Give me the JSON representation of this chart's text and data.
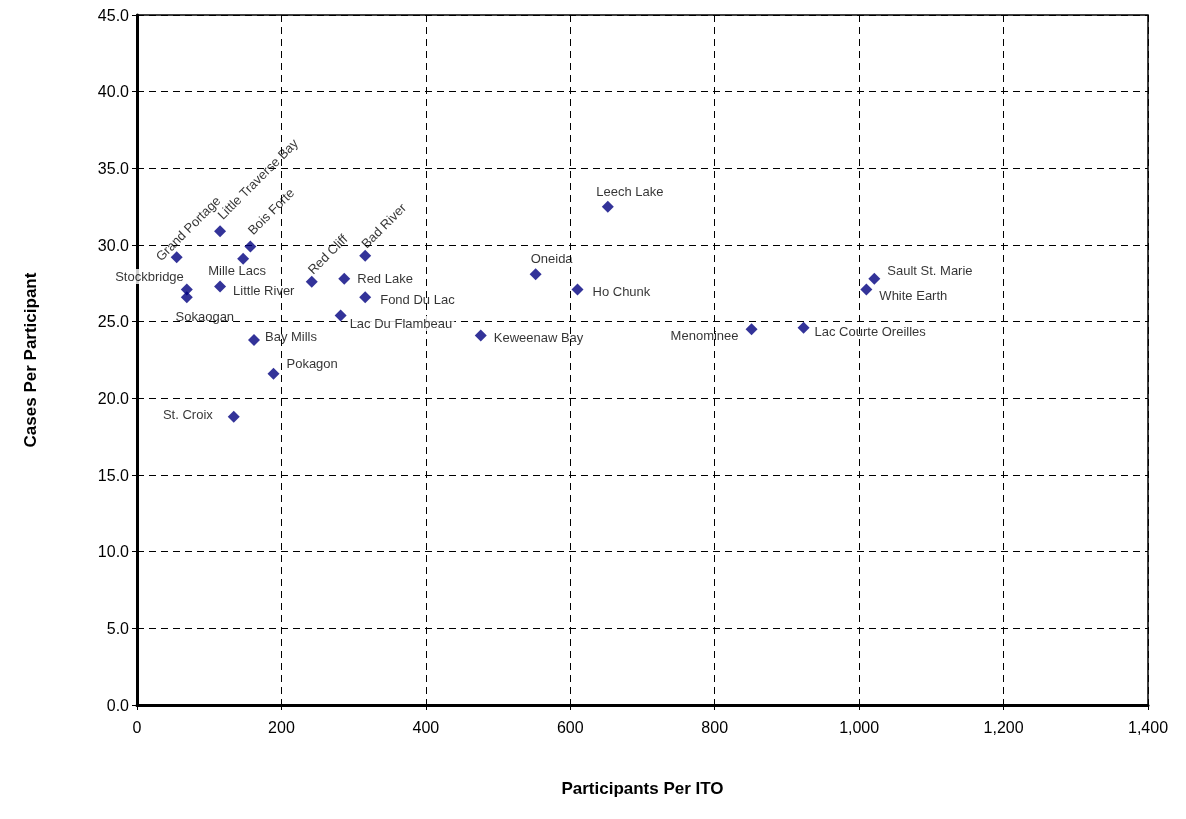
{
  "chart_data": {
    "type": "scatter",
    "xlabel": "Participants Per ITO",
    "ylabel": "Cases Per Participant",
    "x": [
      55,
      115,
      157,
      147,
      69,
      69,
      115,
      242,
      287,
      316,
      316,
      282,
      162,
      189,
      134,
      476,
      652,
      552,
      610,
      851,
      923,
      1021,
      1010
    ],
    "values": [
      29.2,
      30.9,
      29.9,
      29.1,
      27.1,
      26.6,
      27.3,
      27.6,
      27.8,
      29.3,
      26.6,
      25.4,
      23.8,
      21.6,
      18.8,
      24.1,
      32.5,
      28.1,
      27.1,
      24.5,
      24.6,
      27.8,
      27.1
    ],
    "value_labels": [
      "Grand Portage",
      "Little Traverse Bay",
      "Bois Forte",
      "Mille Lacs",
      "Stockbridge",
      "Sokaogan",
      "Little River",
      "Red Cliff",
      "Red Lake",
      "Bad River",
      "Fond Du Lac",
      "Lac Du Flambeau",
      "Bay Mills",
      "Pokagon",
      "St. Croix",
      "Keweenaw Bay",
      "Leech Lake",
      "Oneida",
      "Ho Chunk",
      "Menominee",
      "Lac Courte Oreilles",
      "Sault St. Marie",
      "White Earth"
    ],
    "color": "#000080",
    "marker": "diamond",
    "grid": true,
    "xlim": [
      0,
      1400
    ],
    "xticks": [
      0,
      200,
      400,
      600,
      800,
      {
        "value": 1000,
        "label": "1,000"
      },
      {
        "value": 1200,
        "label": "1,200"
      },
      {
        "value": 1400,
        "label": "1,400"
      }
    ],
    "ylim": [
      0,
      45
    ],
    "yticks": [
      {
        "value": 0,
        "label": "0.0"
      },
      {
        "value": 5,
        "label": "5.0"
      },
      {
        "value": 10,
        "label": "10.0"
      },
      {
        "value": 15,
        "label": "15.0"
      },
      {
        "value": 20,
        "label": "20.0"
      },
      {
        "value": 25,
        "label": "25.0"
      },
      {
        "value": 30,
        "label": "30.0"
      },
      {
        "value": 35,
        "label": "35.0"
      },
      {
        "value": 40,
        "label": "40.0"
      },
      {
        "value": 45,
        "label": "45.0"
      }
    ]
  }
}
